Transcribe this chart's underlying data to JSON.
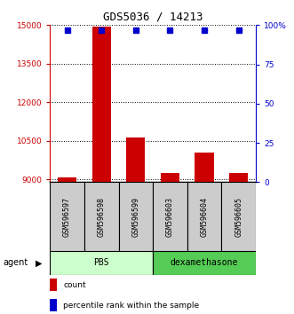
{
  "title": "GDS5036 / 14213",
  "samples": [
    "GSM596597",
    "GSM596598",
    "GSM596599",
    "GSM596603",
    "GSM596604",
    "GSM596605"
  ],
  "bar_values": [
    9100,
    14950,
    10650,
    9250,
    10050,
    9250
  ],
  "percentile_values": [
    97,
    97,
    97,
    97,
    97,
    97
  ],
  "bar_color": "#cc0000",
  "dot_color": "#0000cc",
  "ylim_left": [
    8900,
    15000
  ],
  "ylim_right": [
    0,
    100
  ],
  "yticks_left": [
    9000,
    10500,
    12000,
    13500,
    15000
  ],
  "ytick_labels_left": [
    "9000",
    "10500",
    "12000",
    "13500",
    "15000"
  ],
  "yticks_right": [
    0,
    25,
    50,
    75,
    100
  ],
  "ytick_labels_right": [
    "0",
    "25",
    "50",
    "75",
    "100%"
  ],
  "groups": [
    {
      "label": "PBS",
      "samples": [
        0,
        1,
        2
      ],
      "color": "#ccffcc"
    },
    {
      "label": "dexamethasone",
      "samples": [
        3,
        4,
        5
      ],
      "color": "#55cc55"
    }
  ],
  "agent_label": "agent",
  "legend_items": [
    {
      "label": "count",
      "color": "#cc0000"
    },
    {
      "label": "percentile rank within the sample",
      "color": "#0000cc"
    }
  ],
  "bar_width": 0.55,
  "background_color": "#ffffff",
  "label_area_color": "#cccccc"
}
